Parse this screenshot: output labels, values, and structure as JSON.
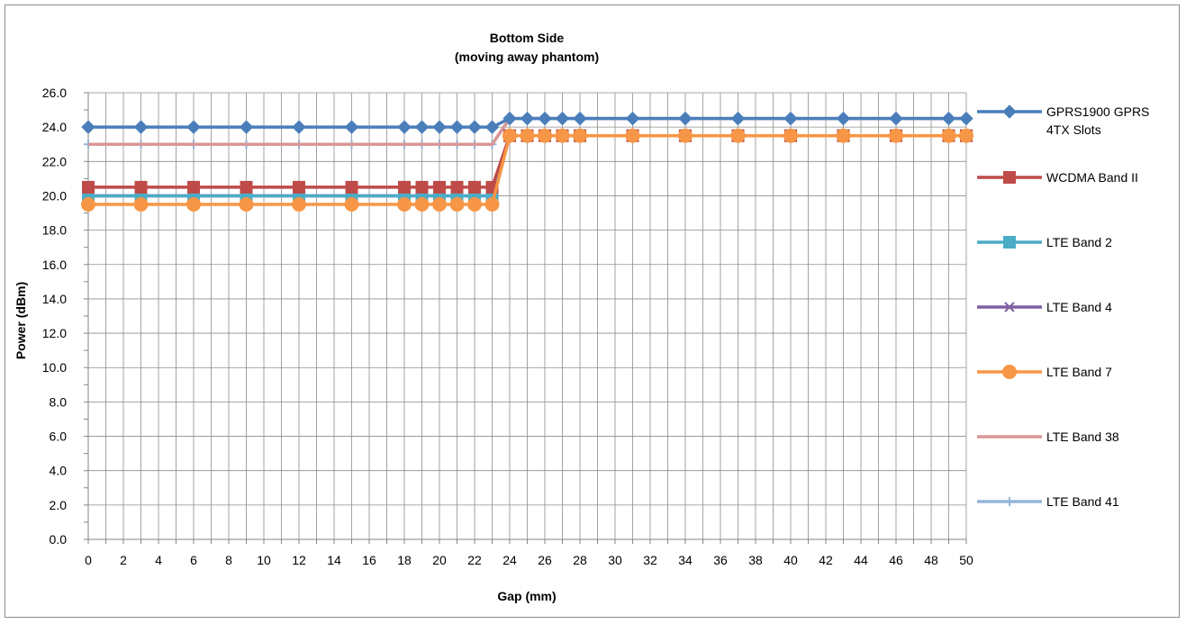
{
  "chart_data": {
    "type": "line",
    "title": "Bottom Side",
    "subtitle": "(moving away phantom)",
    "xlabel": "Gap (mm)",
    "ylabel": "Power (dBm)",
    "xlim": [
      0,
      50
    ],
    "ylim": [
      0,
      26
    ],
    "x_ticks": [
      "0",
      "2",
      "4",
      "6",
      "8",
      "10",
      "12",
      "14",
      "16",
      "18",
      "20",
      "22",
      "24",
      "26",
      "28",
      "30",
      "32",
      "34",
      "36",
      "38",
      "40",
      "42",
      "44",
      "46",
      "48",
      "50"
    ],
    "y_ticks": [
      "0.0",
      "2.0",
      "4.0",
      "6.0",
      "8.0",
      "10.0",
      "12.0",
      "14.0",
      "16.0",
      "18.0",
      "20.0",
      "22.0",
      "24.0",
      "26.0"
    ],
    "grid": true,
    "legend_position": "right",
    "x": [
      0,
      3,
      6,
      9,
      12,
      15,
      18,
      19,
      20,
      21,
      22,
      23,
      24,
      25,
      26,
      27,
      28,
      31,
      34,
      37,
      40,
      43,
      46,
      49,
      50
    ],
    "series": [
      {
        "name": "GPRS1900 GPRS 4TX Slots",
        "name_lines": [
          "GPRS1900 GPRS",
          "4TX Slots"
        ],
        "color": "#4a7ebb",
        "marker": "diamond",
        "values": [
          24.0,
          24.0,
          24.0,
          24.0,
          24.0,
          24.0,
          24.0,
          24.0,
          24.0,
          24.0,
          24.0,
          24.0,
          24.5,
          24.5,
          24.5,
          24.5,
          24.5,
          24.5,
          24.5,
          24.5,
          24.5,
          24.5,
          24.5,
          24.5,
          24.5
        ]
      },
      {
        "name": "WCDMA Band II",
        "name_lines": [
          "WCDMA Band II"
        ],
        "color": "#be4b48",
        "marker": "square",
        "values": [
          20.5,
          20.5,
          20.5,
          20.5,
          20.5,
          20.5,
          20.5,
          20.5,
          20.5,
          20.5,
          20.5,
          20.5,
          23.5,
          23.5,
          23.5,
          23.5,
          23.5,
          23.5,
          23.5,
          23.5,
          23.5,
          23.5,
          23.5,
          23.5,
          23.5
        ]
      },
      {
        "name": "LTE Band 2",
        "name_lines": [
          "LTE Band 2"
        ],
        "color": "#4bacc6",
        "marker": "square",
        "values": [
          20.0,
          20.0,
          20.0,
          20.0,
          20.0,
          20.0,
          20.0,
          20.0,
          20.0,
          20.0,
          20.0,
          20.0,
          23.5,
          23.5,
          23.5,
          23.5,
          23.5,
          23.5,
          23.5,
          23.5,
          23.5,
          23.5,
          23.5,
          23.5,
          23.5
        ]
      },
      {
        "name": "LTE Band 4",
        "name_lines": [
          "LTE Band 4"
        ],
        "color": "#7d60a0",
        "marker": "x",
        "values": [
          20.0,
          20.0,
          20.0,
          20.0,
          20.0,
          20.0,
          20.0,
          20.0,
          20.0,
          20.0,
          20.0,
          20.0,
          23.5,
          23.5,
          23.5,
          23.5,
          23.5,
          23.5,
          23.5,
          23.5,
          23.5,
          23.5,
          23.5,
          23.5,
          23.5
        ]
      },
      {
        "name": "LTE Band 7",
        "name_lines": [
          "LTE Band 7"
        ],
        "color": "#f79646",
        "marker": "circle",
        "values": [
          19.5,
          19.5,
          19.5,
          19.5,
          19.5,
          19.5,
          19.5,
          19.5,
          19.5,
          19.5,
          19.5,
          19.5,
          23.5,
          23.5,
          23.5,
          23.5,
          23.5,
          23.5,
          23.5,
          23.5,
          23.5,
          23.5,
          23.5,
          23.5,
          23.5
        ]
      },
      {
        "name": "LTE Band 38",
        "name_lines": [
          "LTE Band 38"
        ],
        "color": "#d99795",
        "marker": "none",
        "values": [
          23.0,
          23.0,
          23.0,
          23.0,
          23.0,
          23.0,
          23.0,
          23.0,
          23.0,
          23.0,
          23.0,
          23.0,
          24.5,
          24.5,
          24.5,
          24.5,
          24.5,
          24.5,
          24.5,
          24.5,
          24.5,
          24.5,
          24.5,
          24.5,
          24.5
        ]
      },
      {
        "name": "LTE Band 41",
        "name_lines": [
          "LTE Band 41"
        ],
        "color": "#95b3d7",
        "marker": "plus",
        "values": [
          23.0,
          23.0,
          23.0,
          23.0,
          23.0,
          23.0,
          23.0,
          23.0,
          23.0,
          23.0,
          23.0,
          23.0,
          24.5,
          24.5,
          24.5,
          24.5,
          24.5,
          24.5,
          24.5,
          24.5,
          24.5,
          24.5,
          24.5,
          24.5,
          24.5
        ]
      }
    ]
  }
}
